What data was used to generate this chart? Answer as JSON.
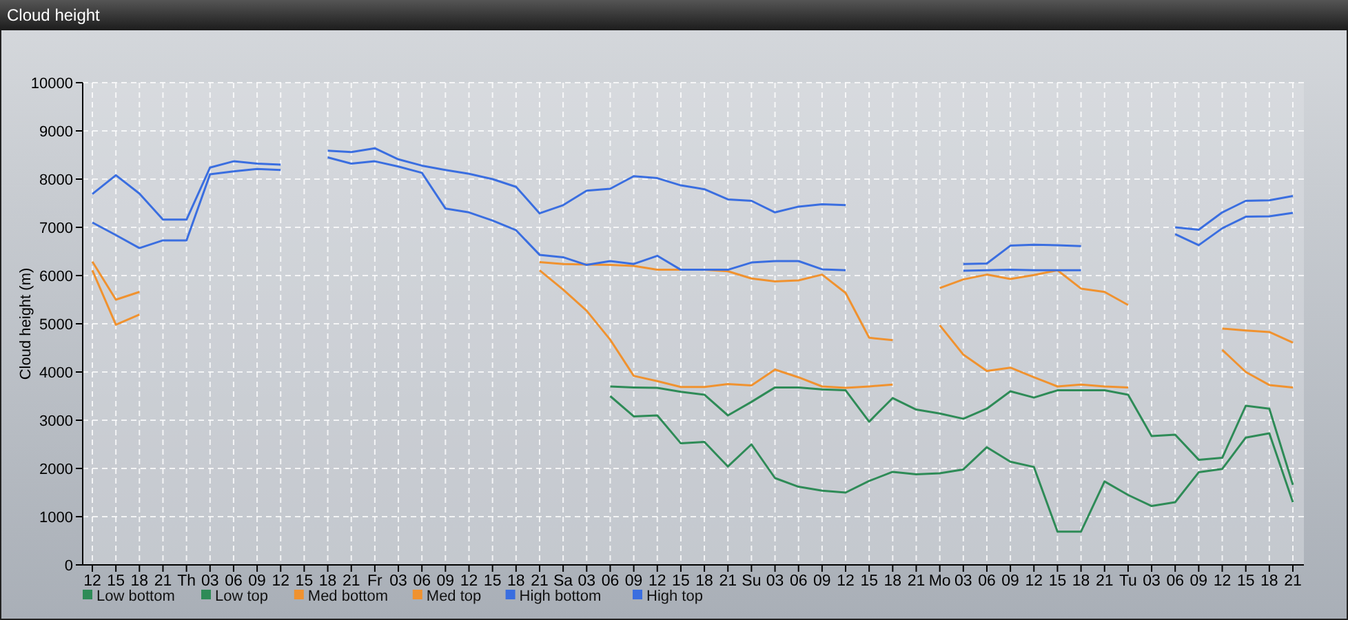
{
  "chart_data": {
    "type": "line",
    "title": "Cloud height",
    "ylabel": "Cloud height (m)",
    "categories": [
      "12",
      "15",
      "18",
      "21",
      "Th",
      "03",
      "06",
      "09",
      "12",
      "15",
      "18",
      "21",
      "Fr",
      "03",
      "06",
      "09",
      "12",
      "15",
      "18",
      "21",
      "Sa",
      "03",
      "06",
      "09",
      "12",
      "15",
      "18",
      "21",
      "Su",
      "03",
      "06",
      "09",
      "12",
      "15",
      "18",
      "21",
      "Mo",
      "03",
      "06",
      "09",
      "12",
      "15",
      "18",
      "21",
      "Tu",
      "03",
      "06",
      "09",
      "12",
      "15",
      "18",
      "21"
    ],
    "ylim": [
      0,
      10000
    ],
    "yticks": [
      0,
      1000,
      2000,
      3000,
      4000,
      5000,
      6000,
      7000,
      8000,
      9000,
      10000
    ],
    "grid": true,
    "legend": "bottom left",
    "line_style": "solid",
    "marker": "none",
    "series": [
      {
        "name": "Low bottom",
        "color": "#2e8b57",
        "values": [
          null,
          null,
          null,
          null,
          null,
          null,
          null,
          null,
          null,
          null,
          null,
          null,
          null,
          null,
          null,
          null,
          null,
          null,
          null,
          null,
          null,
          null,
          3500,
          3080,
          3100,
          2520,
          2550,
          2040,
          2500,
          1800,
          1620,
          1540,
          1500,
          1740,
          1930,
          1880,
          1900,
          1980,
          2440,
          2140,
          2030,
          690,
          690,
          1730,
          1450,
          1220,
          1300,
          1920,
          1990,
          2640,
          2730,
          1300
        ]
      },
      {
        "name": "Low top",
        "color": "#2e8b57",
        "values": [
          null,
          null,
          null,
          null,
          null,
          null,
          null,
          null,
          null,
          null,
          null,
          null,
          null,
          null,
          null,
          null,
          null,
          null,
          null,
          null,
          null,
          null,
          3700,
          3680,
          3670,
          3590,
          3530,
          3100,
          3380,
          3680,
          3680,
          3640,
          3620,
          2970,
          3460,
          3220,
          3140,
          3030,
          3240,
          3600,
          3470,
          3620,
          3620,
          3620,
          3530,
          2670,
          2700,
          2180,
          2220,
          3300,
          3240,
          1660
        ]
      },
      {
        "name": "Med bottom",
        "color": "#f0922f",
        "values": [
          6110,
          4980,
          5190,
          null,
          null,
          null,
          null,
          null,
          null,
          null,
          null,
          null,
          null,
          null,
          null,
          null,
          null,
          null,
          null,
          6110,
          5710,
          5270,
          4670,
          3920,
          3810,
          3690,
          3690,
          3750,
          3720,
          4050,
          3890,
          3700,
          3670,
          3700,
          3740,
          null,
          4970,
          4360,
          4020,
          4090,
          3890,
          3700,
          3740,
          3700,
          3680,
          null,
          null,
          null,
          4460,
          4000,
          3730,
          3680
        ]
      },
      {
        "name": "Med top",
        "color": "#f0922f",
        "values": [
          6290,
          5500,
          5660,
          null,
          null,
          null,
          null,
          null,
          null,
          null,
          null,
          null,
          null,
          null,
          null,
          null,
          null,
          null,
          null,
          6280,
          6240,
          6230,
          6220,
          6200,
          6120,
          6120,
          6120,
          6090,
          5940,
          5880,
          5900,
          6020,
          5640,
          4710,
          4660,
          null,
          5740,
          5920,
          6020,
          5930,
          6010,
          6110,
          5730,
          5660,
          5390,
          null,
          null,
          null,
          4900,
          4860,
          4830,
          4610
        ]
      },
      {
        "name": "High bottom",
        "color": "#3a6ee0",
        "values": [
          7100,
          6840,
          6570,
          6730,
          6730,
          8100,
          8160,
          8210,
          8190,
          null,
          8450,
          8320,
          8370,
          8260,
          8130,
          7390,
          7310,
          7140,
          6940,
          6430,
          6380,
          6220,
          6300,
          6240,
          6410,
          6120,
          6120,
          6120,
          6270,
          6300,
          6300,
          6130,
          6110,
          null,
          null,
          null,
          null,
          6100,
          6110,
          6120,
          6110,
          6110,
          6110,
          null,
          null,
          null,
          6860,
          6630,
          6980,
          7220,
          7230,
          7300
        ]
      },
      {
        "name": "High top",
        "color": "#3a6ee0",
        "values": [
          7690,
          8080,
          7700,
          7160,
          7160,
          8240,
          8370,
          8320,
          8300,
          null,
          8590,
          8560,
          8640,
          8410,
          8280,
          8190,
          8110,
          8000,
          7840,
          7290,
          7460,
          7760,
          7800,
          8060,
          8020,
          7870,
          7790,
          7580,
          7550,
          7310,
          7430,
          7480,
          7460,
          null,
          null,
          null,
          null,
          6240,
          6250,
          6620,
          6640,
          6630,
          6610,
          null,
          null,
          null,
          7000,
          6950,
          7310,
          7550,
          7560,
          7650
        ]
      }
    ]
  }
}
